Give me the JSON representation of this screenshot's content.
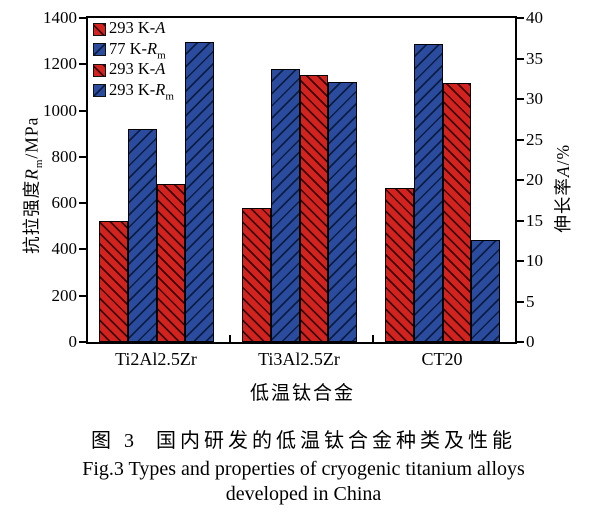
{
  "chart_data": {
    "type": "bar",
    "categories": [
      "Ti2Al2.5Zr",
      "Ti3Al2.5Zr",
      "CT20"
    ],
    "xlabel": "低温钛合金",
    "grid": false,
    "legend_position": "top-left-inside",
    "left_axis": {
      "label_cn": "抗拉强度",
      "label_sym": "R",
      "label_sub": "m",
      "label_post": "/MPa",
      "min": 0,
      "max": 1400,
      "ticks": [
        0,
        200,
        400,
        600,
        800,
        1000,
        1200,
        1400
      ]
    },
    "right_axis": {
      "label_cn": "伸长率",
      "label_sym": "A",
      "label_sub": "",
      "label_post": "/%",
      "min": 0,
      "max": 40,
      "ticks": [
        0,
        5,
        10,
        15,
        20,
        25,
        30,
        35,
        40
      ]
    },
    "series": [
      {
        "label_pre": "293 K-",
        "label_sym": "A",
        "label_sub": "",
        "axis": "right",
        "unit": "%",
        "color": "#d3231e",
        "hatch_color": "#3c040a",
        "hatch_dir": "\\",
        "hatch_gap": 6,
        "values": [
          15,
          16.5,
          19
        ]
      },
      {
        "label_pre": "77 K-",
        "label_sym": "R",
        "label_sub": "m",
        "axis": "left",
        "unit": "MPa",
        "color": "#2b4c9e",
        "hatch_color": "#0b1d42",
        "hatch_dir": "/",
        "hatch_gap": 7,
        "values": [
          920,
          1180,
          1290
        ]
      },
      {
        "label_pre": "293 K-",
        "label_sym": "A",
        "label_sub": "",
        "axis": "right",
        "unit": "%",
        "color": "#d3231e",
        "hatch_color": "#3c040a",
        "hatch_dir": "\\",
        "hatch_gap": 6,
        "values": [
          19.5,
          33,
          32
        ]
      },
      {
        "label_pre": "293 K-",
        "label_sym": "R",
        "label_sub": "m",
        "axis": "left",
        "unit": "MPa",
        "color": "#2b4c9e",
        "hatch_color": "#0b1d42",
        "hatch_dir": "/",
        "hatch_gap": 7,
        "values": [
          1295,
          1125,
          440
        ]
      }
    ]
  },
  "caption": {
    "cn_label": "图 3",
    "cn_text": "国内研发的低温钛合金种类及性能",
    "en_line1": "Fig.3 Types and properties of cryogenic titanium alloys",
    "en_line2": "developed in China"
  }
}
